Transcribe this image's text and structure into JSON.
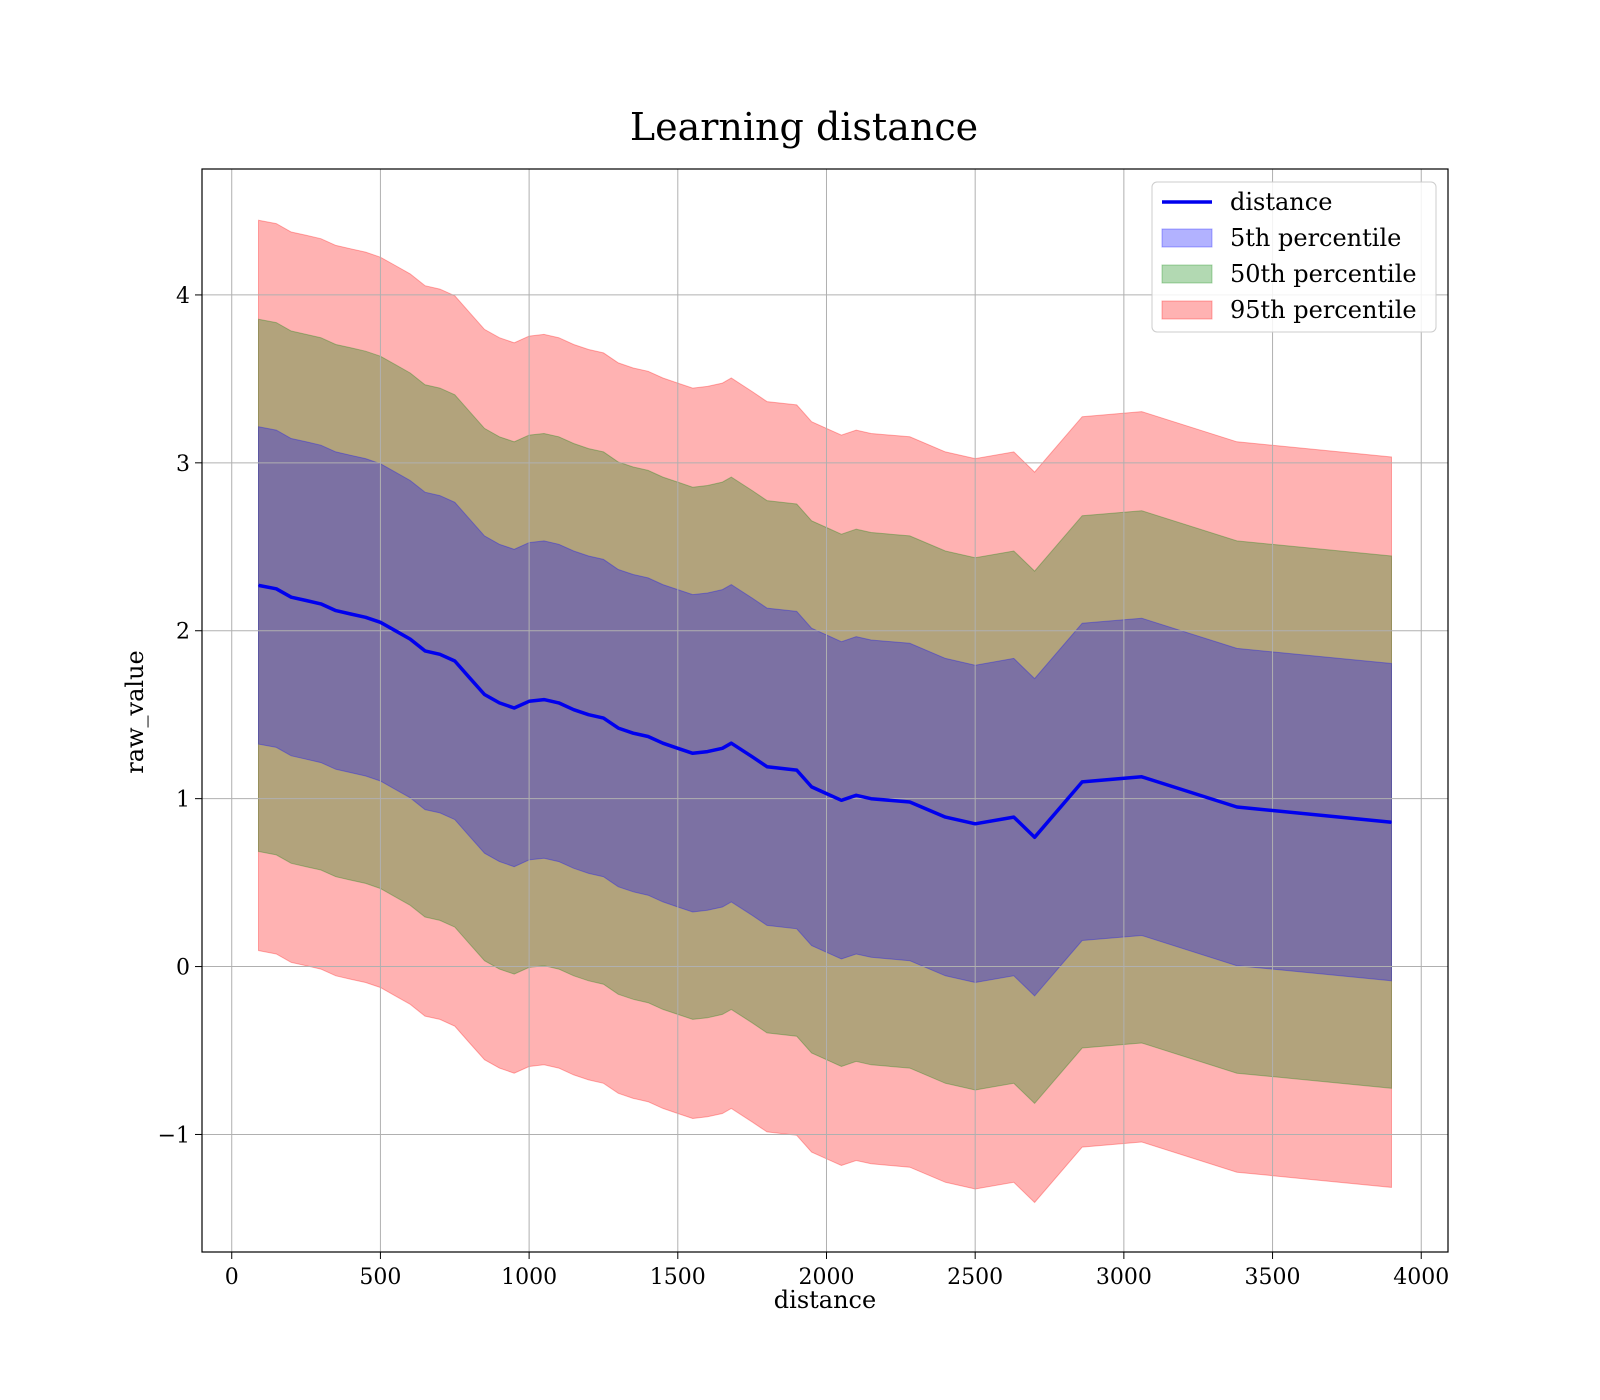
{
  "chart_data": {
    "type": "line",
    "title": "Learning distance",
    "xlabel": "distance",
    "ylabel": "raw_value",
    "xlim": [
      -100,
      4090
    ],
    "ylim": [
      -1.7,
      4.75
    ],
    "xticks": [
      0,
      500,
      1000,
      1500,
      2000,
      2500,
      3000,
      3500,
      4000
    ],
    "xtick_labels": [
      "0",
      "500",
      "1000",
      "1500",
      "2000",
      "2500",
      "3000",
      "3500",
      "4000"
    ],
    "yticks": [
      -1,
      0,
      1,
      2,
      3,
      4
    ],
    "ytick_labels": [
      "−1",
      "0",
      "1",
      "2",
      "3",
      "4"
    ],
    "grid": true,
    "legend_position": "top-right",
    "x": [
      90,
      150,
      200,
      250,
      300,
      350,
      400,
      450,
      500,
      550,
      600,
      650,
      700,
      750,
      800,
      850,
      900,
      950,
      1000,
      1050,
      1100,
      1150,
      1200,
      1250,
      1300,
      1350,
      1400,
      1450,
      1500,
      1550,
      1600,
      1650,
      1680,
      1750,
      1800,
      1900,
      1950,
      2000,
      2050,
      2100,
      2150,
      2280,
      2400,
      2500,
      2630,
      2700,
      2860,
      3060,
      3380,
      3900
    ],
    "series": [
      {
        "name": "distance",
        "kind": "line",
        "color": "#0000ee",
        "values": [
          2.27,
          2.25,
          2.2,
          2.18,
          2.16,
          2.12,
          2.1,
          2.08,
          2.05,
          2.0,
          1.95,
          1.88,
          1.86,
          1.82,
          1.72,
          1.62,
          1.57,
          1.54,
          1.58,
          1.59,
          1.57,
          1.53,
          1.5,
          1.48,
          1.42,
          1.39,
          1.37,
          1.33,
          1.3,
          1.27,
          1.28,
          1.3,
          1.33,
          1.25,
          1.19,
          1.17,
          1.07,
          1.03,
          0.99,
          1.02,
          1.0,
          0.98,
          0.89,
          0.85,
          0.89,
          0.77,
          1.1,
          1.13,
          0.95,
          0.86
        ]
      },
      {
        "name": "5th percentile",
        "kind": "band",
        "color": "#0000ff",
        "offset": 0.945
      },
      {
        "name": "50th percentile",
        "kind": "band",
        "color": "#008000",
        "offset": 1.585
      },
      {
        "name": "95th percentile",
        "kind": "band",
        "color": "#ff0000",
        "offset": 2.175
      }
    ]
  }
}
